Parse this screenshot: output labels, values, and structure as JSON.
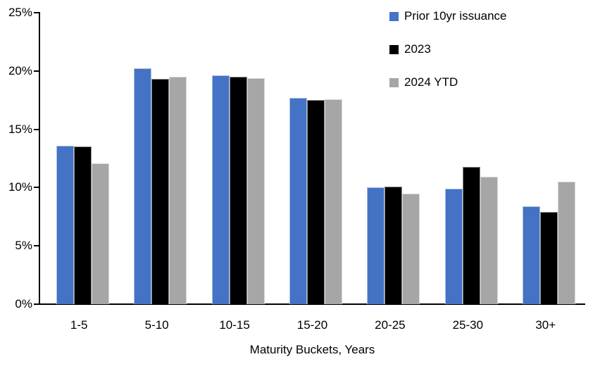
{
  "chart_data": {
    "type": "bar",
    "title": "",
    "xlabel": "Maturity Buckets, Years",
    "ylabel": "",
    "ylim": [
      0,
      25
    ],
    "y_tick_step": 5,
    "y_tick_labels": [
      "0%",
      "5%",
      "10%",
      "15%",
      "20%",
      "25%"
    ],
    "grid": false,
    "legend_position": "top-right",
    "axis_color": "#000000",
    "categories": [
      "1-5",
      "5-10",
      "10-15",
      "15-20",
      "20-25",
      "25-30",
      "30+"
    ],
    "series": [
      {
        "name": "Prior 10yr issuance",
        "color": "#4472C4",
        "values": [
          13.6,
          20.2,
          19.6,
          17.7,
          10.0,
          9.9,
          8.4
        ]
      },
      {
        "name": "2023",
        "color": "#000000",
        "values": [
          13.5,
          19.3,
          19.5,
          17.5,
          10.1,
          11.8,
          7.9
        ]
      },
      {
        "name": "2024 YTD",
        "color": "#A6A6A6",
        "values": [
          12.1,
          19.5,
          19.4,
          17.6,
          9.5,
          10.9,
          10.5
        ]
      }
    ]
  }
}
